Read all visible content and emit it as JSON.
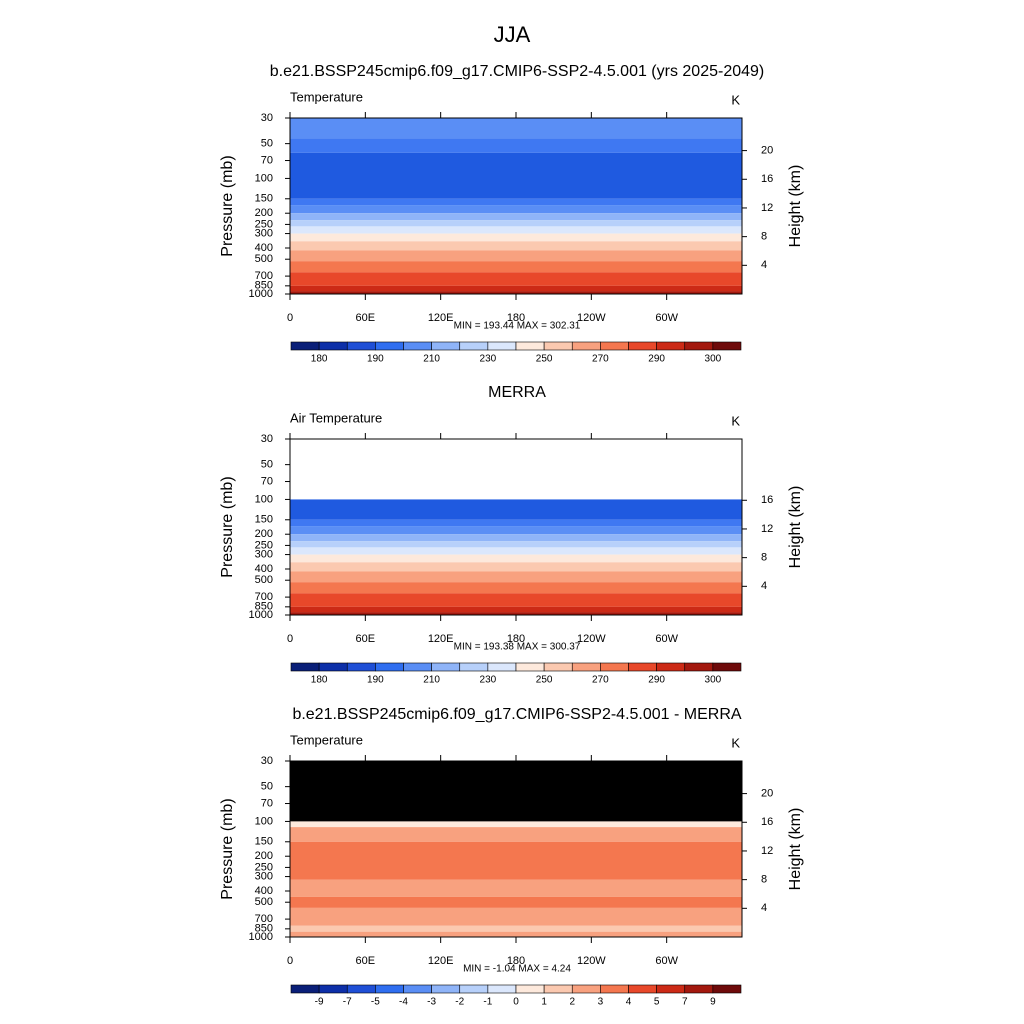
{
  "title": "JJA",
  "chart_data": [
    {
      "type": "contour",
      "title": "b.e21.BSSP245cmip6.f09_g17.CMIP6-SSP2-4.5.001 (yrs 2025-2049)",
      "left_label": "Temperature",
      "units_label": "K",
      "ylabel": "Pressure (mb)",
      "y2label": "Height (km)",
      "stats": "MIN = 193.44  MAX = 302.31",
      "log_y": true,
      "ylim": [
        1000,
        30
      ],
      "yticks": [
        30,
        50,
        70,
        100,
        150,
        200,
        250,
        300,
        400,
        500,
        700,
        850,
        1000
      ],
      "y2ticks": [
        20,
        16,
        12,
        8,
        4
      ],
      "xlim": [
        0,
        360
      ],
      "xticks": [
        0,
        {
          "value": 60,
          "label": "60E"
        },
        {
          "value": 120,
          "label": "120E"
        },
        180,
        {
          "value": 240,
          "label": "120W"
        },
        {
          "value": 300,
          "label": "60W"
        }
      ],
      "bands": [
        {
          "bottom": 45,
          "top": 30,
          "color": "#5a8ef5"
        },
        {
          "bottom": 60,
          "top": 45,
          "color": "#3f78f2"
        },
        {
          "bottom": 150,
          "top": 60,
          "color": "#1f5ae0"
        },
        {
          "bottom": 170,
          "top": 150,
          "color": "#3f78f2"
        },
        {
          "bottom": 200,
          "top": 170,
          "color": "#5a8ef5"
        },
        {
          "bottom": 230,
          "top": 200,
          "color": "#8fb4f8"
        },
        {
          "bottom": 260,
          "top": 230,
          "color": "#b7d0fa"
        },
        {
          "bottom": 300,
          "top": 260,
          "color": "#dbe7fc"
        },
        {
          "bottom": 350,
          "top": 300,
          "color": "#fde9dc"
        },
        {
          "bottom": 420,
          "top": 350,
          "color": "#fbc9b0"
        },
        {
          "bottom": 520,
          "top": 420,
          "color": "#f8a17f"
        },
        {
          "bottom": 650,
          "top": 520,
          "color": "#f4774f"
        },
        {
          "bottom": 850,
          "top": 650,
          "color": "#e8482a"
        },
        {
          "bottom": 950,
          "top": 850,
          "color": "#cc2a16"
        },
        {
          "bottom": 1000,
          "top": 950,
          "color": "#a3180e"
        }
      ],
      "colorbar": {
        "colors": [
          "#0a1f78",
          "#0d2fa8",
          "#1f4fd6",
          "#2f6ef0",
          "#5a8ef5",
          "#8fb4f8",
          "#b7d0fa",
          "#dbe7fc",
          "#fde9dc",
          "#fbc9b0",
          "#f8a17f",
          "#f4774f",
          "#e8482a",
          "#cc2a16",
          "#a3180e",
          "#6e0a0a"
        ],
        "labels": [
          180,
          190,
          210,
          230,
          250,
          270,
          290,
          300
        ]
      }
    },
    {
      "type": "contour",
      "title": "MERRA",
      "left_label": "Air Temperature",
      "units_label": "K",
      "ylabel": "Pressure (mb)",
      "y2label": "Height (km)",
      "stats": "MIN = 193.38  MAX = 300.37",
      "log_y": true,
      "ylim": [
        1000,
        30
      ],
      "yticks": [
        30,
        50,
        70,
        100,
        150,
        200,
        250,
        300,
        400,
        500,
        700,
        850,
        1000
      ],
      "y2ticks": [
        16,
        12,
        8,
        4
      ],
      "xlim": [
        0,
        360
      ],
      "xticks": [
        0,
        {
          "value": 60,
          "label": "60E"
        },
        {
          "value": 120,
          "label": "120E"
        },
        180,
        {
          "value": 240,
          "label": "120W"
        },
        {
          "value": 300,
          "label": "60W"
        }
      ],
      "bands": [
        {
          "bottom": 150,
          "top": 100,
          "color": "#1f5ae0"
        },
        {
          "bottom": 170,
          "top": 150,
          "color": "#3f78f2"
        },
        {
          "bottom": 200,
          "top": 170,
          "color": "#5a8ef5"
        },
        {
          "bottom": 230,
          "top": 200,
          "color": "#8fb4f8"
        },
        {
          "bottom": 260,
          "top": 230,
          "color": "#b7d0fa"
        },
        {
          "bottom": 300,
          "top": 260,
          "color": "#dbe7fc"
        },
        {
          "bottom": 350,
          "top": 300,
          "color": "#fde9dc"
        },
        {
          "bottom": 420,
          "top": 350,
          "color": "#fbc9b0"
        },
        {
          "bottom": 520,
          "top": 420,
          "color": "#f8a17f"
        },
        {
          "bottom": 650,
          "top": 520,
          "color": "#f4774f"
        },
        {
          "bottom": 850,
          "top": 650,
          "color": "#e8482a"
        },
        {
          "bottom": 950,
          "top": 850,
          "color": "#cc2a16"
        },
        {
          "bottom": 1000,
          "top": 950,
          "color": "#a3180e"
        }
      ],
      "colorbar": {
        "colors": [
          "#0a1f78",
          "#0d2fa8",
          "#1f4fd6",
          "#2f6ef0",
          "#5a8ef5",
          "#8fb4f8",
          "#b7d0fa",
          "#dbe7fc",
          "#fde9dc",
          "#fbc9b0",
          "#f8a17f",
          "#f4774f",
          "#e8482a",
          "#cc2a16",
          "#a3180e",
          "#6e0a0a"
        ],
        "labels": [
          180,
          190,
          210,
          230,
          250,
          270,
          290,
          300
        ]
      }
    },
    {
      "type": "contour",
      "title": "b.e21.BSSP245cmip6.f09_g17.CMIP6-SSP2-4.5.001 - MERRA",
      "left_label": "Temperature",
      "units_label": "K",
      "ylabel": "Pressure (mb)",
      "y2label": "Height (km)",
      "stats": "MIN =  -1.04  MAX =   4.24",
      "log_y": true,
      "ylim": [
        1000,
        30
      ],
      "yticks": [
        30,
        50,
        70,
        100,
        150,
        200,
        250,
        300,
        400,
        500,
        700,
        850,
        1000
      ],
      "y2ticks": [
        20,
        16,
        12,
        8,
        4
      ],
      "xlim": [
        0,
        360
      ],
      "xticks": [
        0,
        {
          "value": 60,
          "label": "60E"
        },
        {
          "value": 120,
          "label": "120E"
        },
        180,
        {
          "value": 240,
          "label": "120W"
        },
        {
          "value": 300,
          "label": "60W"
        }
      ],
      "bands": [
        {
          "bottom": 100,
          "top": 30,
          "color": "#000000"
        },
        {
          "bottom": 112,
          "top": 100,
          "color": "#fde9dc"
        },
        {
          "bottom": 150,
          "top": 112,
          "color": "#f8a17f"
        },
        {
          "bottom": 320,
          "top": 150,
          "color": "#f4774f"
        },
        {
          "bottom": 450,
          "top": 320,
          "color": "#f8a17f"
        },
        {
          "bottom": 560,
          "top": 450,
          "color": "#f4774f"
        },
        {
          "bottom": 800,
          "top": 560,
          "color": "#f8a17f"
        },
        {
          "bottom": 900,
          "top": 800,
          "color": "#fbc9b0"
        },
        {
          "bottom": 1000,
          "top": 900,
          "color": "#f8a17f"
        }
      ],
      "colorbar": {
        "colors": [
          "#0a1f78",
          "#0d2fa8",
          "#1f4fd6",
          "#2f6ef0",
          "#5a8ef5",
          "#8fb4f8",
          "#b7d0fa",
          "#dbe7fc",
          "#fde9dc",
          "#fbc9b0",
          "#f8a17f",
          "#f4774f",
          "#e8482a",
          "#cc2a16",
          "#a3180e",
          "#6e0a0a"
        ],
        "labels": [
          -9,
          -7,
          -5,
          -4,
          -3,
          -2,
          -1,
          0,
          1,
          2,
          3,
          4,
          5,
          7,
          9
        ]
      }
    }
  ]
}
